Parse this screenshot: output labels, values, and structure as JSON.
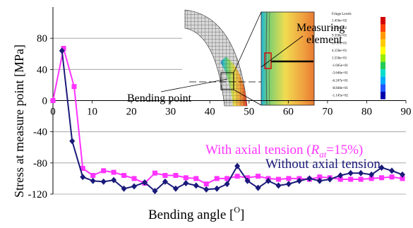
{
  "chart_data": {
    "type": "line",
    "title": "",
    "xlabel": "Bending angle [",
    "xlabel_sup": "O",
    "xlabel_end": "]",
    "ylabel": "Stress at measure point [MPa]",
    "xlim": [
      0,
      90
    ],
    "ylim": [
      -120,
      120
    ],
    "x_ticks": [
      0,
      10,
      20,
      30,
      40,
      50,
      60,
      70,
      80,
      90
    ],
    "y_ticks": [
      80,
      40,
      0,
      -40,
      -80,
      -120
    ],
    "grid": "horizontal",
    "series": [
      {
        "name_main": "With axial tension (",
        "name_sym": "R",
        "name_sub": "at",
        "name_end": "=15%)",
        "color": "#ff33ff",
        "marker": "square",
        "x": [
          0,
          2.7,
          5.4,
          7.6,
          10.2,
          12.9,
          15.5,
          18.1,
          20.7,
          23.4,
          26,
          28.6,
          31.3,
          33.9,
          36.5,
          39.1,
          41.8,
          44.4,
          47,
          49.6,
          52.3,
          54.9,
          57.5,
          60.1,
          62.8,
          65.4,
          68,
          70.6,
          73.3,
          75.9,
          78.5,
          81.2,
          83.8,
          86.4,
          89.1
        ],
        "y": [
          0,
          67,
          18,
          -87,
          -96,
          -90,
          -92,
          -96,
          -100,
          -106,
          -93,
          -96,
          -96,
          -99,
          -100,
          -107,
          -100,
          -100,
          -97,
          -99,
          -97,
          -100,
          -101,
          -100,
          -100,
          -101,
          -98,
          -99,
          -101,
          -101,
          -101,
          -100,
          -99,
          -98,
          -100
        ]
      },
      {
        "name": "Without axial tension",
        "color": "#1a1a7a",
        "marker": "diamond",
        "x": [
          2.3,
          4.9,
          7.6,
          10.2,
          12.9,
          15.5,
          18.1,
          20.7,
          23.4,
          26,
          28.6,
          31.3,
          33.9,
          36.5,
          39.1,
          41.8,
          44.4,
          47,
          49.6,
          52.3,
          54.9,
          57.5,
          60.1,
          62.8,
          65.4,
          68,
          70.6,
          73.3,
          75.9,
          78.5,
          81.2,
          83.8,
          86.4,
          89.1
        ],
        "y": [
          64,
          -52,
          -98,
          -103,
          -104,
          -102,
          -113,
          -110,
          -105,
          -116,
          -104,
          -113,
          -106,
          -109,
          -114,
          -113,
          -107,
          -84,
          -103,
          -112,
          -103,
          -109,
          -107,
          -103,
          -100,
          -103,
          -101,
          -96,
          -93,
          -93,
          -95,
          -86,
          -90,
          -95
        ]
      }
    ],
    "inset": {
      "labels": {
        "measuring_element": "Measuring element",
        "bending_point": "Bending point"
      },
      "fringe": {
        "title": "Fringe Levels",
        "levels": [
          "1.456e+02",
          "1.196e+02",
          "9.358e+01",
          "6.757e+01",
          "4.156e+01",
          "1.556e+01",
          "-1.045e+01",
          "-3.646e+01",
          "-6.247e+01",
          "-8.848e+01",
          "-1.145e+02"
        ],
        "colors": [
          "#d40000",
          "#ff4000",
          "#ff9900",
          "#ffcc00",
          "#ffff00",
          "#99ee00",
          "#22cc55",
          "#00ddcc",
          "#00aaff",
          "#2255ff",
          "#0000aa"
        ]
      }
    }
  }
}
